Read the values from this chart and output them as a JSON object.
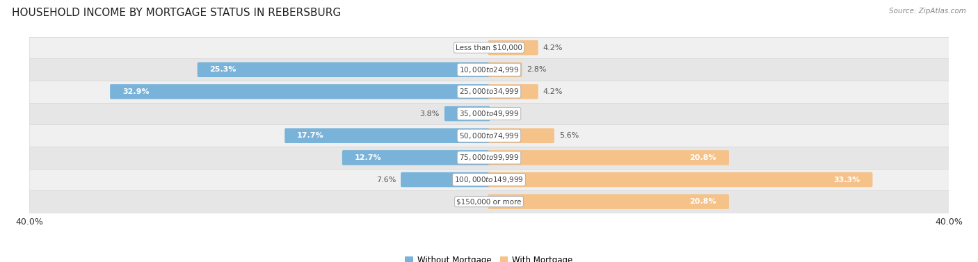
{
  "title": "HOUSEHOLD INCOME BY MORTGAGE STATUS IN REBERSBURG",
  "source": "Source: ZipAtlas.com",
  "categories": [
    "Less than $10,000",
    "$10,000 to $24,999",
    "$25,000 to $34,999",
    "$35,000 to $49,999",
    "$50,000 to $74,999",
    "$75,000 to $99,999",
    "$100,000 to $149,999",
    "$150,000 or more"
  ],
  "without_mortgage": [
    0.0,
    25.3,
    32.9,
    3.8,
    17.7,
    12.7,
    7.6,
    0.0
  ],
  "with_mortgage": [
    4.2,
    2.8,
    4.2,
    0.0,
    5.6,
    20.8,
    33.3,
    20.8
  ],
  "color_without": "#7ab3d9",
  "color_with": "#f5c28a",
  "row_colors": [
    "#f2f2f2",
    "#e8e8e8"
  ],
  "xlim": 40.0,
  "title_fontsize": 11,
  "label_fontsize": 8,
  "category_fontsize": 7.5,
  "legend_fontsize": 8.5,
  "source_fontsize": 7.5
}
